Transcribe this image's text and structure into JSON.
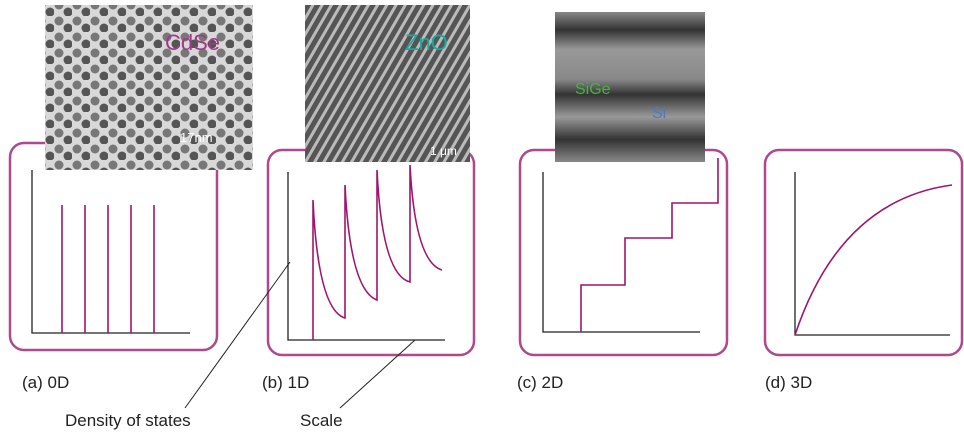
{
  "panels": [
    {
      "label": "(a) 0D",
      "image_labels": [
        "CdSe",
        "17nm"
      ]
    },
    {
      "label": "(b) 1D",
      "image_labels": [
        "ZnO",
        "1 μm"
      ]
    },
    {
      "label": "(c) 2D",
      "image_labels": [
        "SiGe",
        "Si"
      ]
    },
    {
      "label": "(d) 3D"
    }
  ],
  "annotations": [
    "Density of states",
    "Scale"
  ]
}
